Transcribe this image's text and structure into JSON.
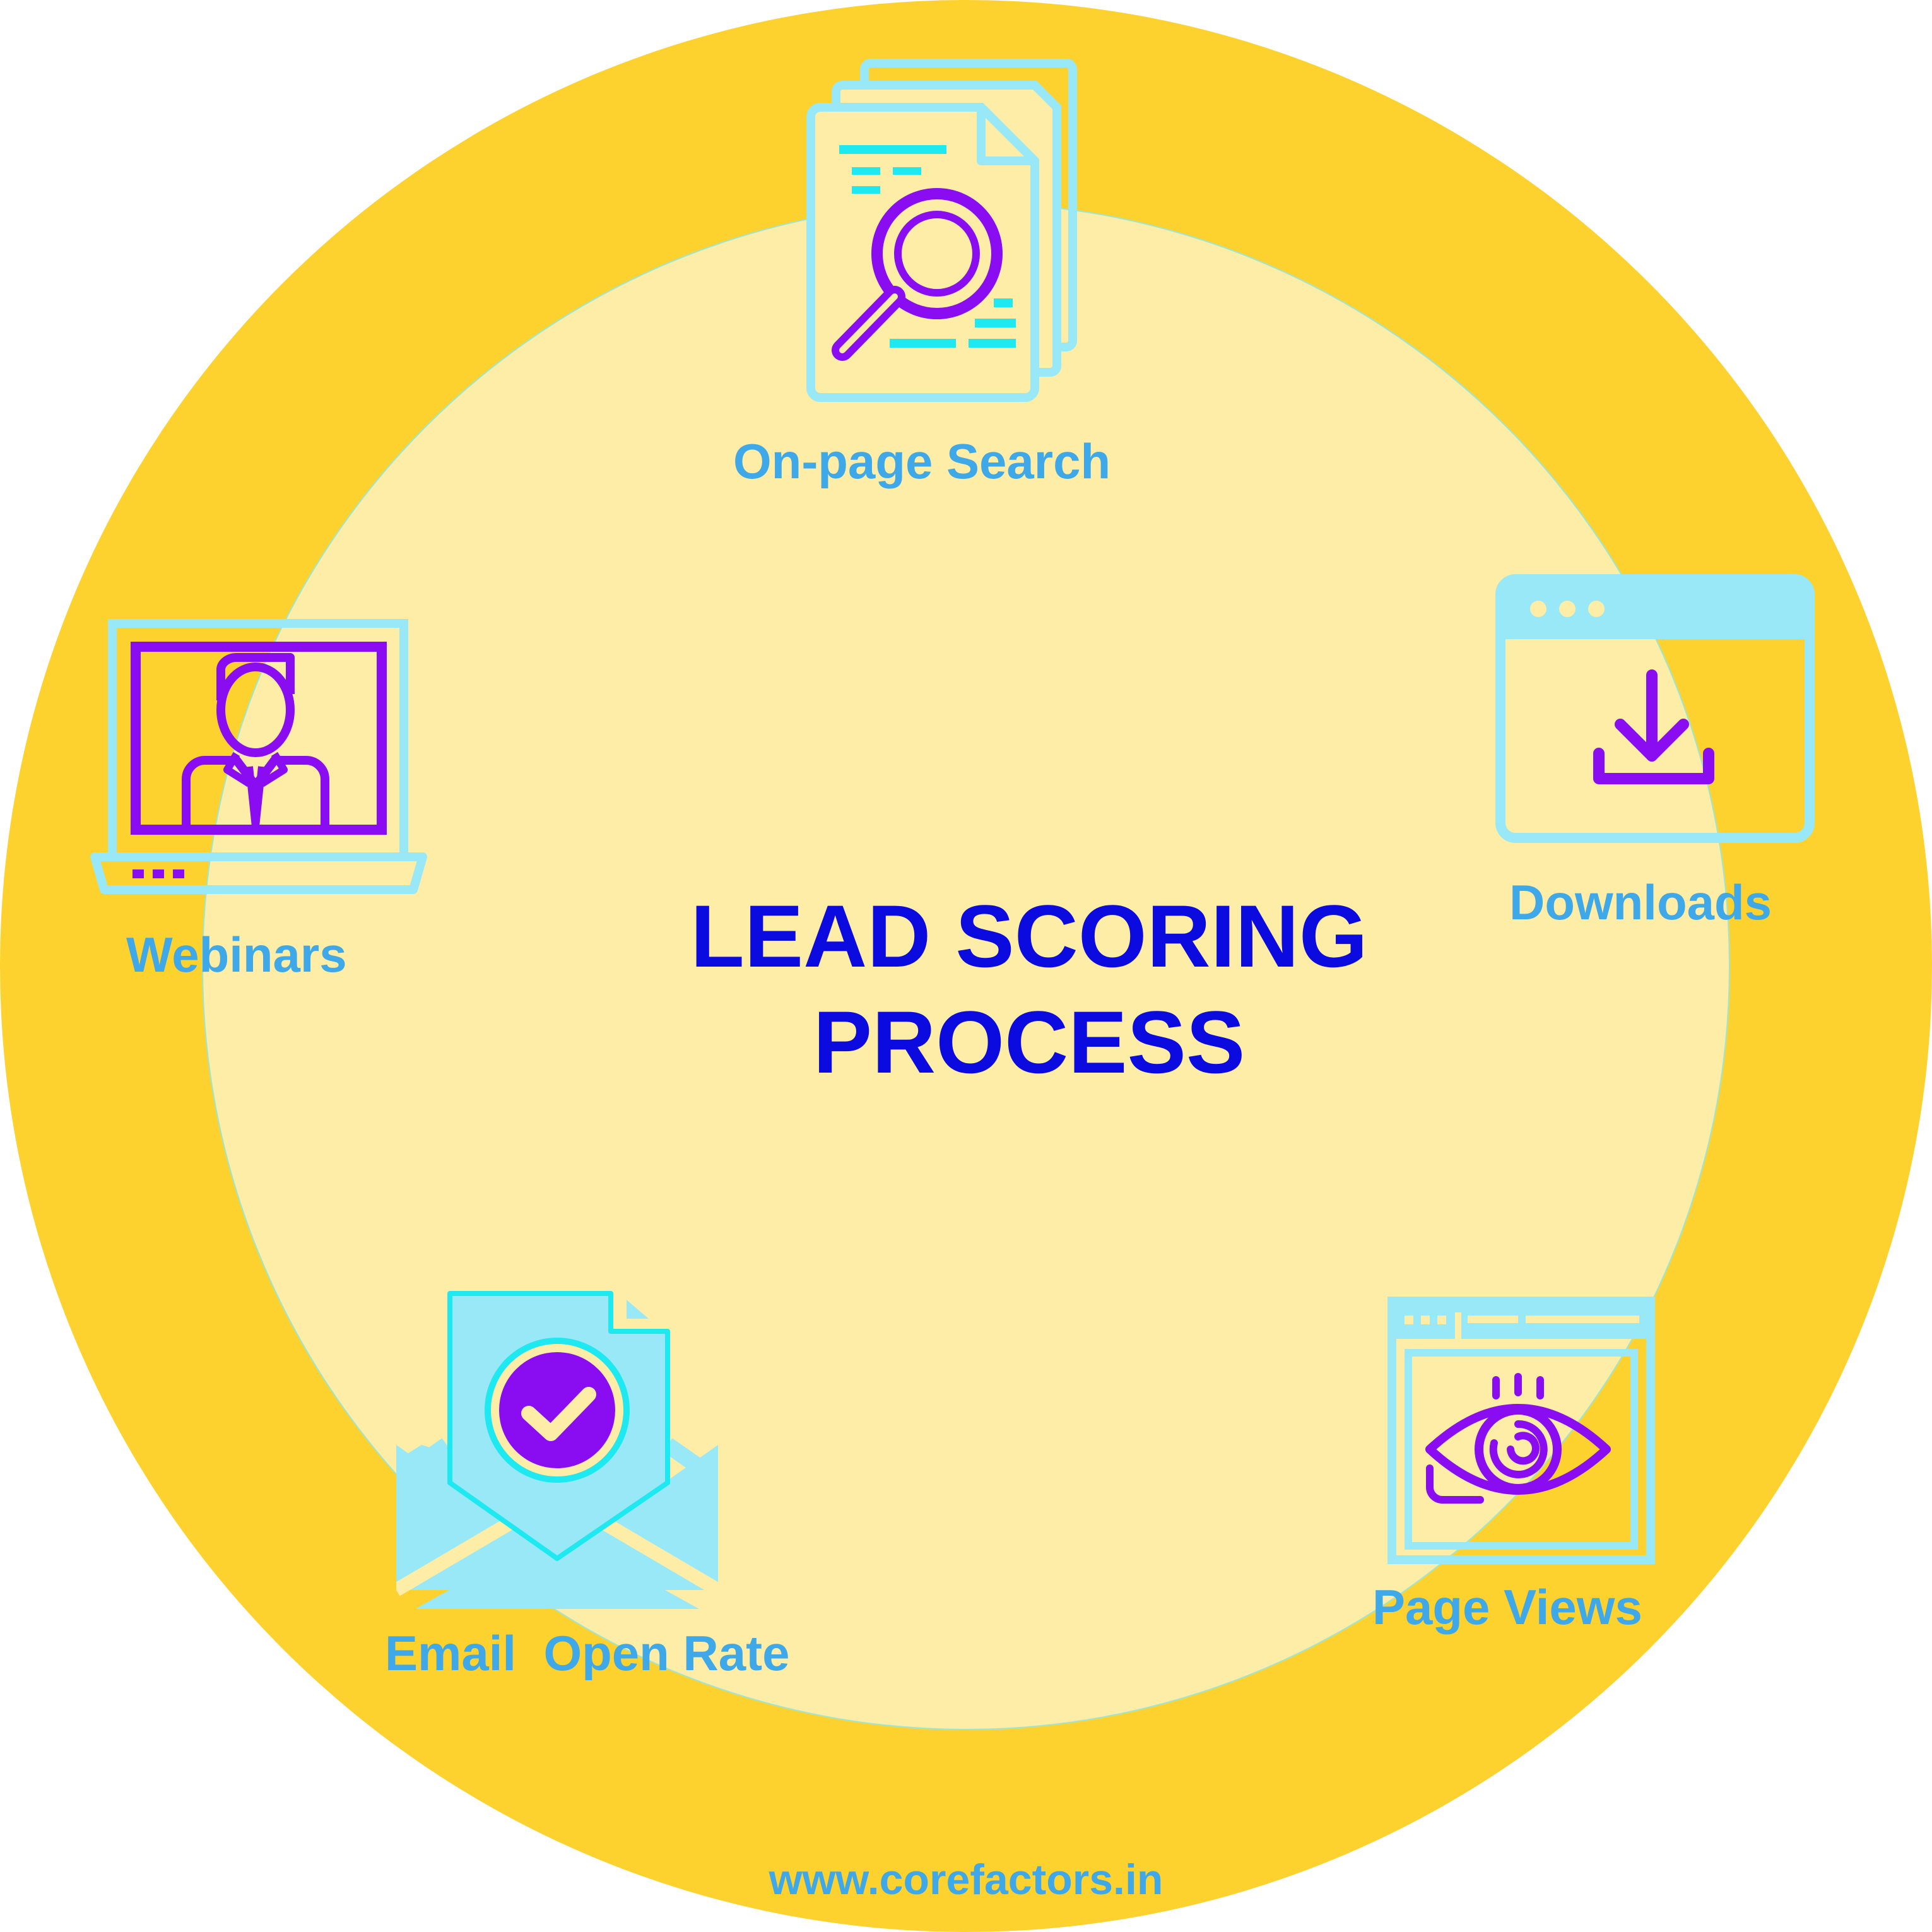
{
  "title": {
    "line1": "LEAD SCORING",
    "line2": "PROCESS"
  },
  "items": {
    "on_page_search": {
      "label": "On-page Search",
      "icon": "document-search-icon"
    },
    "downloads": {
      "label": "Downloads",
      "icon": "browser-download-icon"
    },
    "page_views": {
      "label": "Page Views",
      "icon": "browser-eye-icon"
    },
    "email_open_rate": {
      "label": "Email  Open Rate",
      "icon": "envelope-check-icon"
    },
    "webinars": {
      "label": "Webinars",
      "icon": "laptop-presenter-icon"
    }
  },
  "footer": {
    "url": "www.corefactors.in"
  },
  "colors": {
    "outer_ring": "#FDD22F",
    "inner_disc": "#FDEDA6",
    "title": "#0B0BE0",
    "label": "#3EA8E8",
    "icon_light": "#98E8F8",
    "icon_cyan": "#1EE8F0",
    "icon_purple": "#8A0CF0"
  }
}
